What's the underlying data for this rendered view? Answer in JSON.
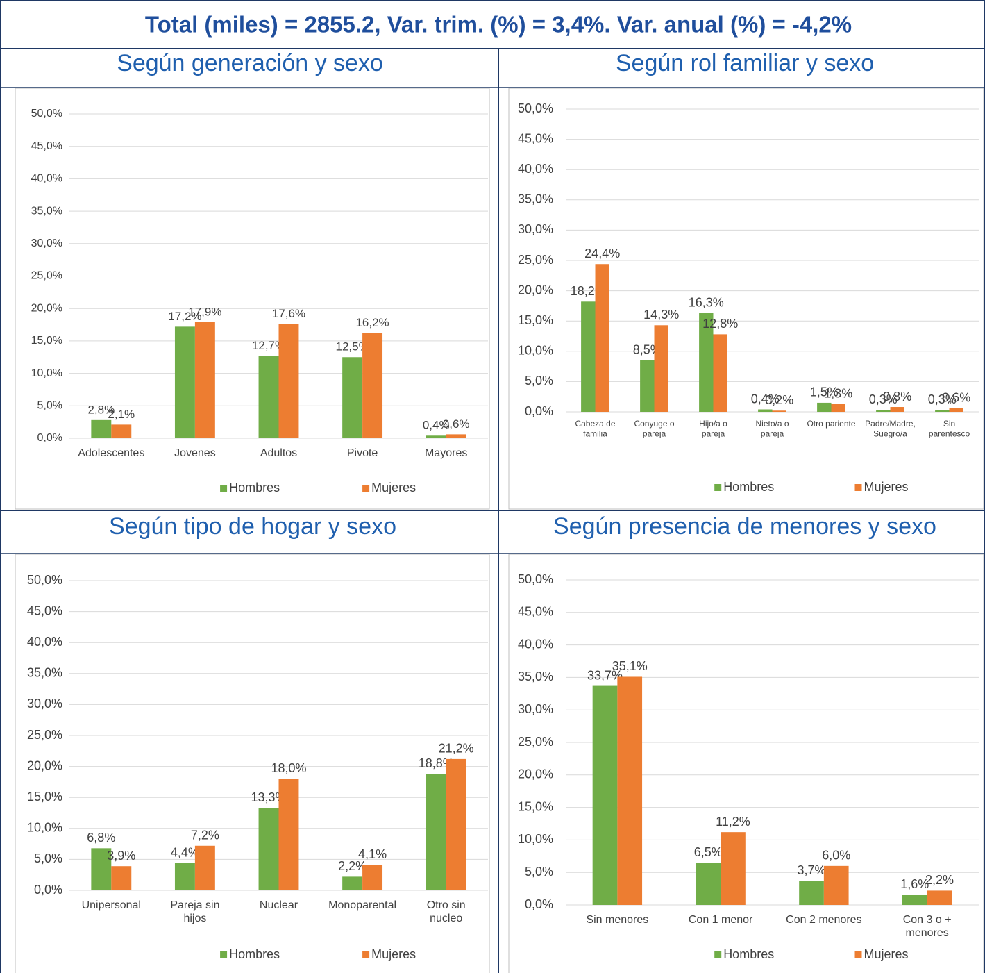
{
  "header": {
    "title": "Total (miles) = 2855.2, Var. trim. (%) = 3,4%. Var. anual (%) = -4,2%"
  },
  "chart_data": [
    {
      "type": "bar",
      "title": "Según generación y sexo",
      "categories": [
        "Adolescentes",
        "Jovenes",
        "Adultos",
        "Pivote",
        "Mayores"
      ],
      "series": [
        {
          "name": "Hombres",
          "color": "#70ad47",
          "values": [
            2.8,
            17.2,
            12.7,
            12.5,
            0.4
          ],
          "value_labels": [
            "2,8%",
            "17,2%",
            "12,7%",
            "12,5%",
            "0,4%"
          ]
        },
        {
          "name": "Mujeres",
          "color": "#ed7d31",
          "values": [
            2.1,
            17.9,
            17.6,
            16.2,
            0.6
          ],
          "value_labels": [
            "2,1%",
            "17,9%",
            "17,6%",
            "16,2%",
            "0,6%"
          ]
        }
      ],
      "ylim": [
        0,
        50
      ],
      "yticks": [
        {
          "value": 0,
          "label": "0,0%"
        },
        {
          "value": 5,
          "label": "5,0%"
        },
        {
          "value": 10,
          "label": "10,0%"
        },
        {
          "value": 15,
          "label": "15,0%"
        },
        {
          "value": 20,
          "label": "20,0%"
        },
        {
          "value": 25,
          "label": "25,0%"
        },
        {
          "value": 30,
          "label": "30,0%"
        },
        {
          "value": 35,
          "label": "35,0%"
        },
        {
          "value": 40,
          "label": "40,0%"
        },
        {
          "value": 45,
          "label": "45,0%"
        },
        {
          "value": 50,
          "label": "50,0%"
        }
      ],
      "grid": true,
      "legend": "bottom"
    },
    {
      "type": "bar",
      "title": "Según rol familiar y sexo",
      "categories": [
        "Cabeza de familia",
        "Conyuge o pareja",
        "Hijo/a o pareja",
        "Nieto/a o pareja",
        "Otro pariente",
        "Padre/Madre, Suegro/a",
        "Sin parentesco"
      ],
      "series": [
        {
          "name": "Hombres",
          "color": "#70ad47",
          "values": [
            18.2,
            8.5,
            16.3,
            0.4,
            1.5,
            0.3,
            0.3
          ],
          "value_labels": [
            "18,2%",
            "8,5%",
            "16,3%",
            "0,4%",
            "1,5%",
            "0,3%",
            "0,3%"
          ]
        },
        {
          "name": "Mujeres",
          "color": "#ed7d31",
          "values": [
            24.4,
            14.3,
            12.8,
            0.2,
            1.3,
            0.8,
            0.6
          ],
          "value_labels": [
            "24,4%",
            "14,3%",
            "12,8%",
            "0,2%",
            "1,3%",
            "0,8%",
            "0,6%"
          ]
        }
      ],
      "ylim": [
        0,
        50
      ],
      "yticks": [
        {
          "value": 0,
          "label": "0,0%"
        },
        {
          "value": 5,
          "label": "5,0%"
        },
        {
          "value": 10,
          "label": "10,0%"
        },
        {
          "value": 15,
          "label": "15,0%"
        },
        {
          "value": 20,
          "label": "20,0%"
        },
        {
          "value": 25,
          "label": "25,0%"
        },
        {
          "value": 30,
          "label": "30,0%"
        },
        {
          "value": 35,
          "label": "35,0%"
        },
        {
          "value": 40,
          "label": "40,0%"
        },
        {
          "value": 45,
          "label": "45,0%"
        },
        {
          "value": 50,
          "label": "50,0%"
        }
      ],
      "grid": true,
      "legend": "bottom"
    },
    {
      "type": "bar",
      "title": "Según tipo de hogar y sexo",
      "categories": [
        "Unipersonal",
        "Pareja sin hijos",
        "Nuclear",
        "Monoparental",
        "Otro sin nucleo"
      ],
      "series": [
        {
          "name": "Hombres",
          "color": "#70ad47",
          "values": [
            6.8,
            4.4,
            13.3,
            2.2,
            18.8
          ],
          "value_labels": [
            "6,8%",
            "4,4%",
            "13,3%",
            "2,2%",
            "18,8%"
          ]
        },
        {
          "name": "Mujeres",
          "color": "#ed7d31",
          "values": [
            3.9,
            7.2,
            18.0,
            4.1,
            21.2
          ],
          "value_labels": [
            "3,9%",
            "7,2%",
            "18,0%",
            "4,1%",
            "21,2%"
          ]
        }
      ],
      "ylim": [
        0,
        50
      ],
      "yticks": [
        {
          "value": 0,
          "label": "0,0%"
        },
        {
          "value": 5,
          "label": "5,0%"
        },
        {
          "value": 10,
          "label": "10,0%"
        },
        {
          "value": 15,
          "label": "15,0%"
        },
        {
          "value": 20,
          "label": "20,0%"
        },
        {
          "value": 25,
          "label": "25,0%"
        },
        {
          "value": 30,
          "label": "30,0%"
        },
        {
          "value": 35,
          "label": "35,0%"
        },
        {
          "value": 40,
          "label": "40,0%"
        },
        {
          "value": 45,
          "label": "45,0%"
        },
        {
          "value": 50,
          "label": "50,0%"
        }
      ],
      "grid": true,
      "legend": "bottom"
    },
    {
      "type": "bar",
      "title": "Según presencia de menores y sexo",
      "categories": [
        "Sin menores",
        "Con 1 menor",
        "Con 2 menores",
        "Con 3 o + menores"
      ],
      "series": [
        {
          "name": "Hombres",
          "color": "#70ad47",
          "values": [
            33.7,
            6.5,
            3.7,
            1.6
          ],
          "value_labels": [
            "33,7%",
            "6,5%",
            "3,7%",
            "1,6%"
          ]
        },
        {
          "name": "Mujeres",
          "color": "#ed7d31",
          "values": [
            35.1,
            11.2,
            6.0,
            2.2
          ],
          "value_labels": [
            "35,1%",
            "11,2%",
            "6,0%",
            "2,2%"
          ]
        }
      ],
      "ylim": [
        0,
        50
      ],
      "yticks": [
        {
          "value": 0,
          "label": "0,0%"
        },
        {
          "value": 5,
          "label": "5,0%"
        },
        {
          "value": 10,
          "label": "10,0%"
        },
        {
          "value": 15,
          "label": "15,0%"
        },
        {
          "value": 20,
          "label": "20,0%"
        },
        {
          "value": 25,
          "label": "25,0%"
        },
        {
          "value": 30,
          "label": "30,0%"
        },
        {
          "value": 35,
          "label": "35,0%"
        },
        {
          "value": 40,
          "label": "40,0%"
        },
        {
          "value": 45,
          "label": "45,0%"
        },
        {
          "value": 50,
          "label": "50,0%"
        }
      ],
      "grid": true,
      "legend": "bottom"
    }
  ]
}
